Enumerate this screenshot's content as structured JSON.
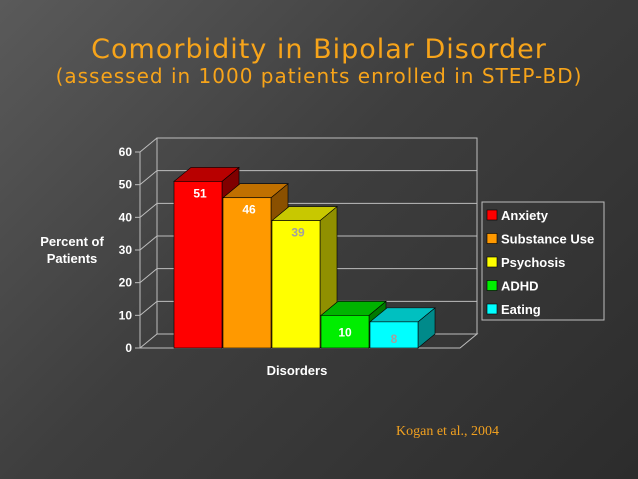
{
  "slide": {
    "title": "Comorbidity in Bipolar Disorder",
    "subtitle": "(assessed in 1000 patients enrolled in STEP-BD)",
    "citation": "Kogan et al., 2004"
  },
  "chart_data": {
    "type": "bar",
    "title": "",
    "xlabel": "Disorders",
    "ylabel": "Percent of Patients",
    "ylabel_lines": [
      "Percent of",
      "Patients"
    ],
    "ylim": [
      0,
      60
    ],
    "yticks": [
      0,
      10,
      20,
      30,
      40,
      50,
      60
    ],
    "grid": true,
    "legend_position": "right",
    "categories": [
      "Anxiety",
      "Substance Use",
      "Psychosis",
      "ADHD",
      "Eating"
    ],
    "values": [
      51,
      46,
      39,
      10,
      8
    ],
    "colors": [
      "#ff0000",
      "#ff9900",
      "#ffff00",
      "#00ee00",
      "#00ffff"
    ],
    "side_colors": [
      "#800000",
      "#8a5000",
      "#909000",
      "#007a00",
      "#008a8a"
    ],
    "top_colors": [
      "#b80000",
      "#c07000",
      "#c8c800",
      "#00b400",
      "#00c0c0"
    ]
  }
}
